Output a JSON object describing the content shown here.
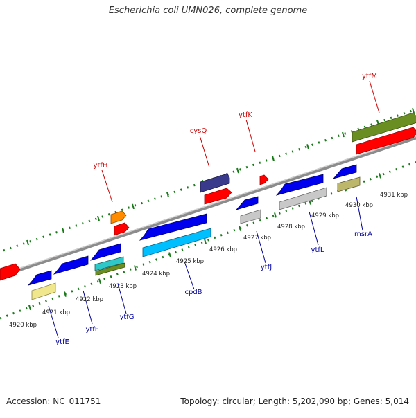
{
  "title": "Escherichia coli UMN026, complete genome",
  "footer": {
    "accession": "Accession: NC_011751",
    "stats": "Topology: circular; Length: 5,202,090 bp; Genes: 5,014"
  },
  "colors": {
    "backbone": "#8c8c8c",
    "tick_top": "#1b7a1b",
    "tick_bottom": "#1b7a1b",
    "label_top": "#cc0000",
    "label_bottom": "#000099",
    "kbp_text": "#222222"
  },
  "kbp_labels": [
    "4920 kbp",
    "4921 kbp",
    "4922 kbp",
    "4923 kbp",
    "4924 kbp",
    "4925 kbp",
    "4926 kbp",
    "4927 kbp",
    "4928 kbp",
    "4929 kbp",
    "4930 kbp",
    "4931 kbp"
  ],
  "upper_gene_labels": [
    "ytfH",
    "cysQ",
    "ytfK",
    "ytfM"
  ],
  "lower_gene_labels": [
    "ytfE",
    "ytfF",
    "ytfG",
    "cpdB",
    "ytfJ",
    "ytfL",
    "msrA"
  ]
}
